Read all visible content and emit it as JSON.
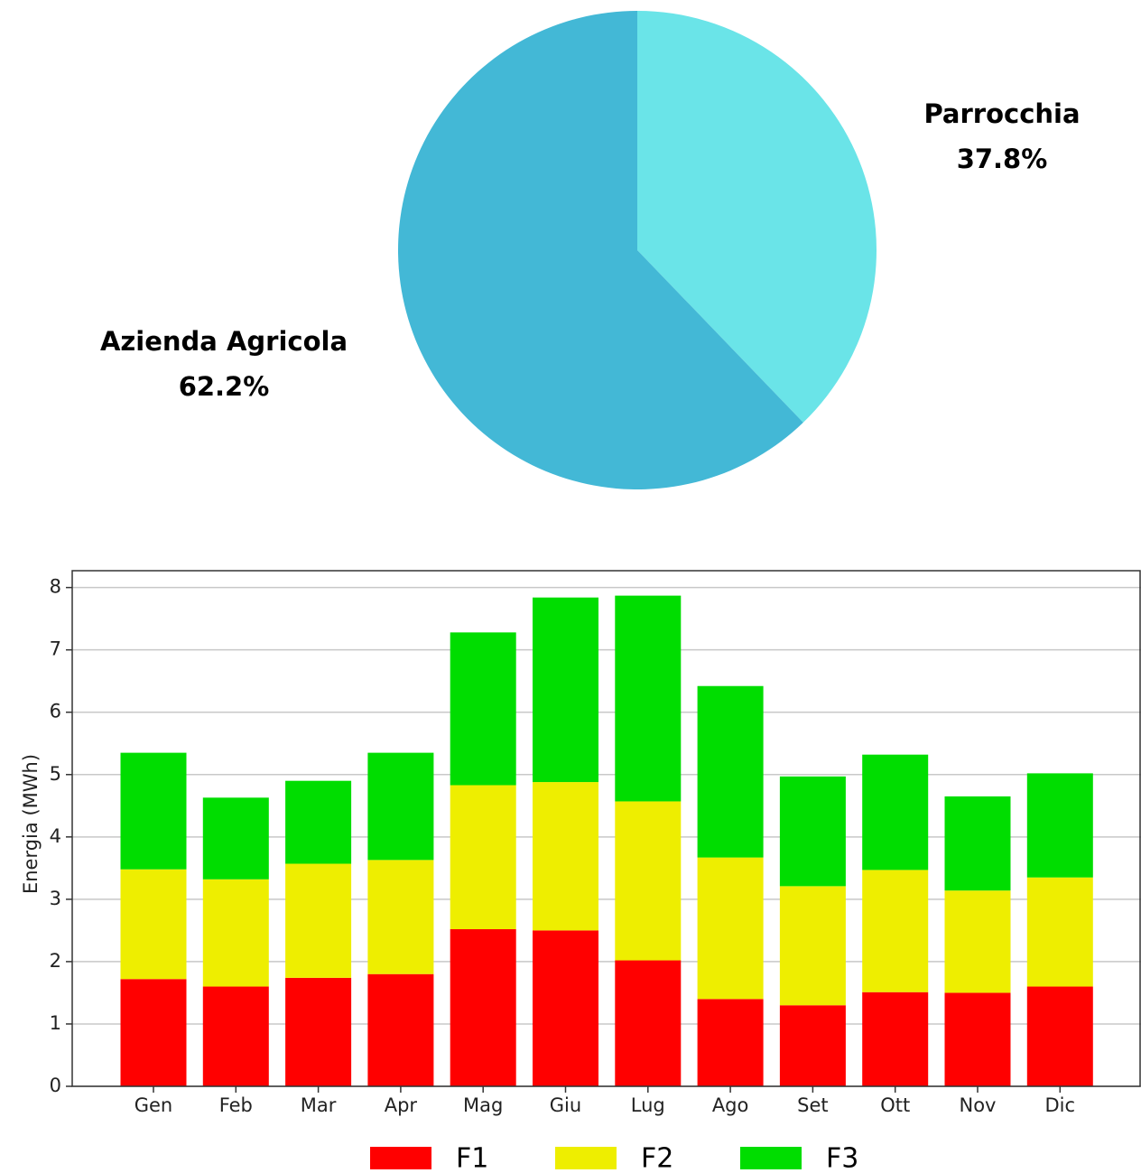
{
  "chart_data": [
    {
      "type": "pie",
      "categories": [
        "Parrocchia",
        "Azienda Agricola"
      ],
      "values": [
        37.8,
        62.2
      ],
      "value_labels": [
        "37.8%",
        "62.2%"
      ],
      "colors": [
        "#6ae4e8",
        "#43b8d6"
      ]
    },
    {
      "type": "stacked_bar",
      "ylabel": "Energia (MWh)",
      "categories": [
        "Gen",
        "Feb",
        "Mar",
        "Apr",
        "Mag",
        "Giu",
        "Lug",
        "Ago",
        "Set",
        "Ott",
        "Nov",
        "Dic"
      ],
      "series": [
        {
          "name": "F1",
          "color": "#ff0000",
          "values": [
            1.72,
            1.6,
            1.74,
            1.8,
            2.52,
            2.5,
            2.02,
            1.4,
            1.3,
            1.51,
            1.5,
            1.6
          ]
        },
        {
          "name": "F2",
          "color": "#eeee00",
          "values": [
            1.76,
            1.72,
            1.83,
            1.83,
            2.31,
            2.38,
            2.55,
            2.27,
            1.91,
            1.96,
            1.64,
            1.75
          ]
        },
        {
          "name": "F3",
          "color": "#00dd00",
          "values": [
            1.87,
            1.31,
            1.33,
            1.72,
            2.45,
            2.96,
            3.3,
            2.75,
            1.76,
            1.85,
            1.51,
            1.67
          ]
        }
      ],
      "ylim": [
        0,
        8.27
      ],
      "yticks": [
        0,
        1,
        2,
        3,
        4,
        5,
        6,
        7,
        8
      ],
      "grid": true,
      "legend": "bottom"
    }
  ]
}
